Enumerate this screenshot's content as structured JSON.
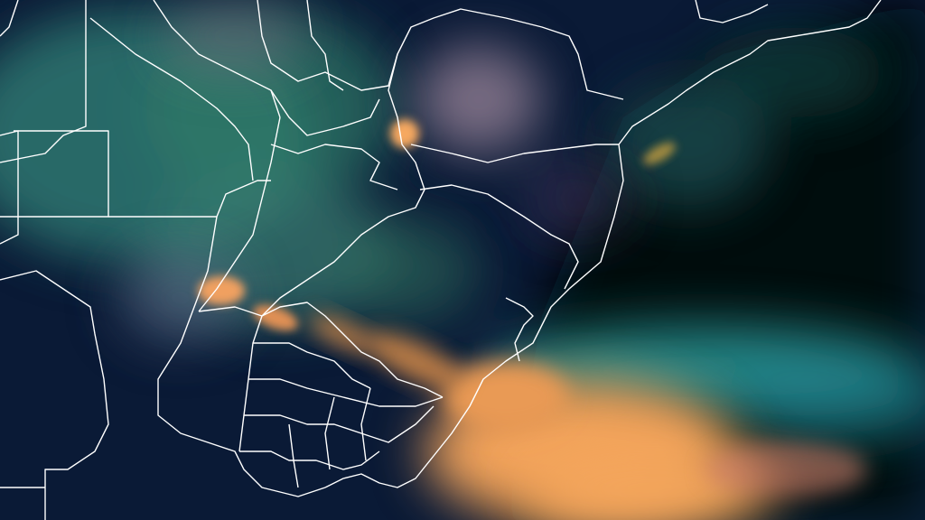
{
  "image": {
    "kind": "satellite-rgb-composite",
    "colors": {
      "ocean_dark": "#04110f",
      "land_night": "#0b1a3a",
      "cloud_cyan": "#2e9f9a",
      "cloud_green": "#3f7f5a",
      "cloud_orange": "#f3a45a",
      "cloud_pink": "#9a7c8c",
      "border": "#ffffff"
    }
  }
}
